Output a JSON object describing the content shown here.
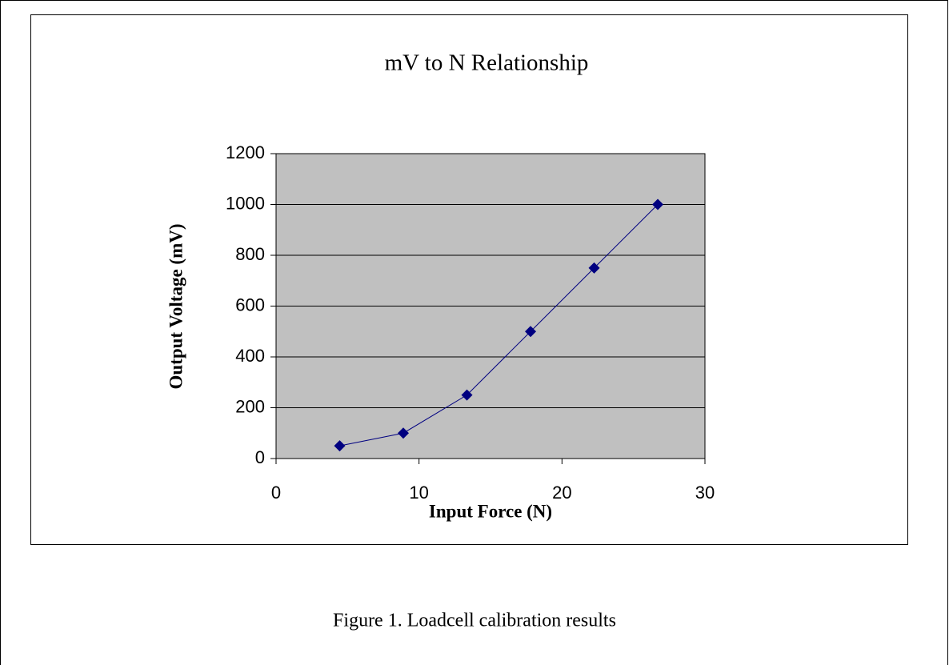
{
  "chart_data": {
    "type": "line",
    "title": "mV to N Relationship",
    "x_label": "Input Force (N)",
    "y_label": "Output Voltage (mV)",
    "x": [
      4.45,
      8.9,
      13.35,
      17.8,
      22.25,
      26.7
    ],
    "series": [
      {
        "color": "#000080",
        "values": [
          50,
          100,
          250,
          500,
          750,
          1000
        ]
      }
    ],
    "xlim": [
      0,
      30
    ],
    "xticks": [
      0,
      10,
      20,
      30
    ],
    "ylim": [
      0,
      1200
    ],
    "yticks": [
      0,
      200,
      400,
      600,
      800,
      1000,
      1200
    ],
    "grid": true,
    "plot_background": "#c0c0c0"
  },
  "caption": "Figure 1. Loadcell calibration results"
}
